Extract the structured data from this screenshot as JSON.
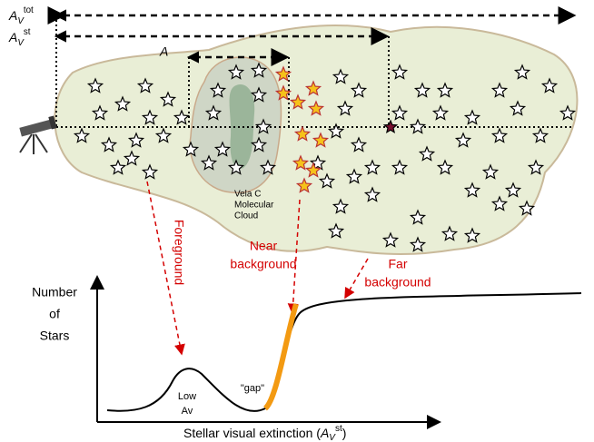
{
  "labels": {
    "av_tot": {
      "base": "A",
      "sub": "V",
      "sup": "tot"
    },
    "av_st": {
      "base": "A",
      "sub": "V",
      "sup": "st"
    },
    "a": "A",
    "cloud": [
      "Vela C",
      "Molecular",
      "Cloud"
    ],
    "foreground": "Foreground",
    "near": [
      "Near",
      "background"
    ],
    "far": [
      "Far",
      "background"
    ]
  },
  "graph": {
    "y_label": [
      "Number",
      "of",
      "Stars"
    ],
    "low_av": [
      "Low",
      "Av"
    ],
    "gap": "\"gap\"",
    "x_label": {
      "text": "Stellar visual extinction (",
      "base": "A",
      "sub": "V",
      "sup": "st",
      "close": ")"
    }
  }
}
